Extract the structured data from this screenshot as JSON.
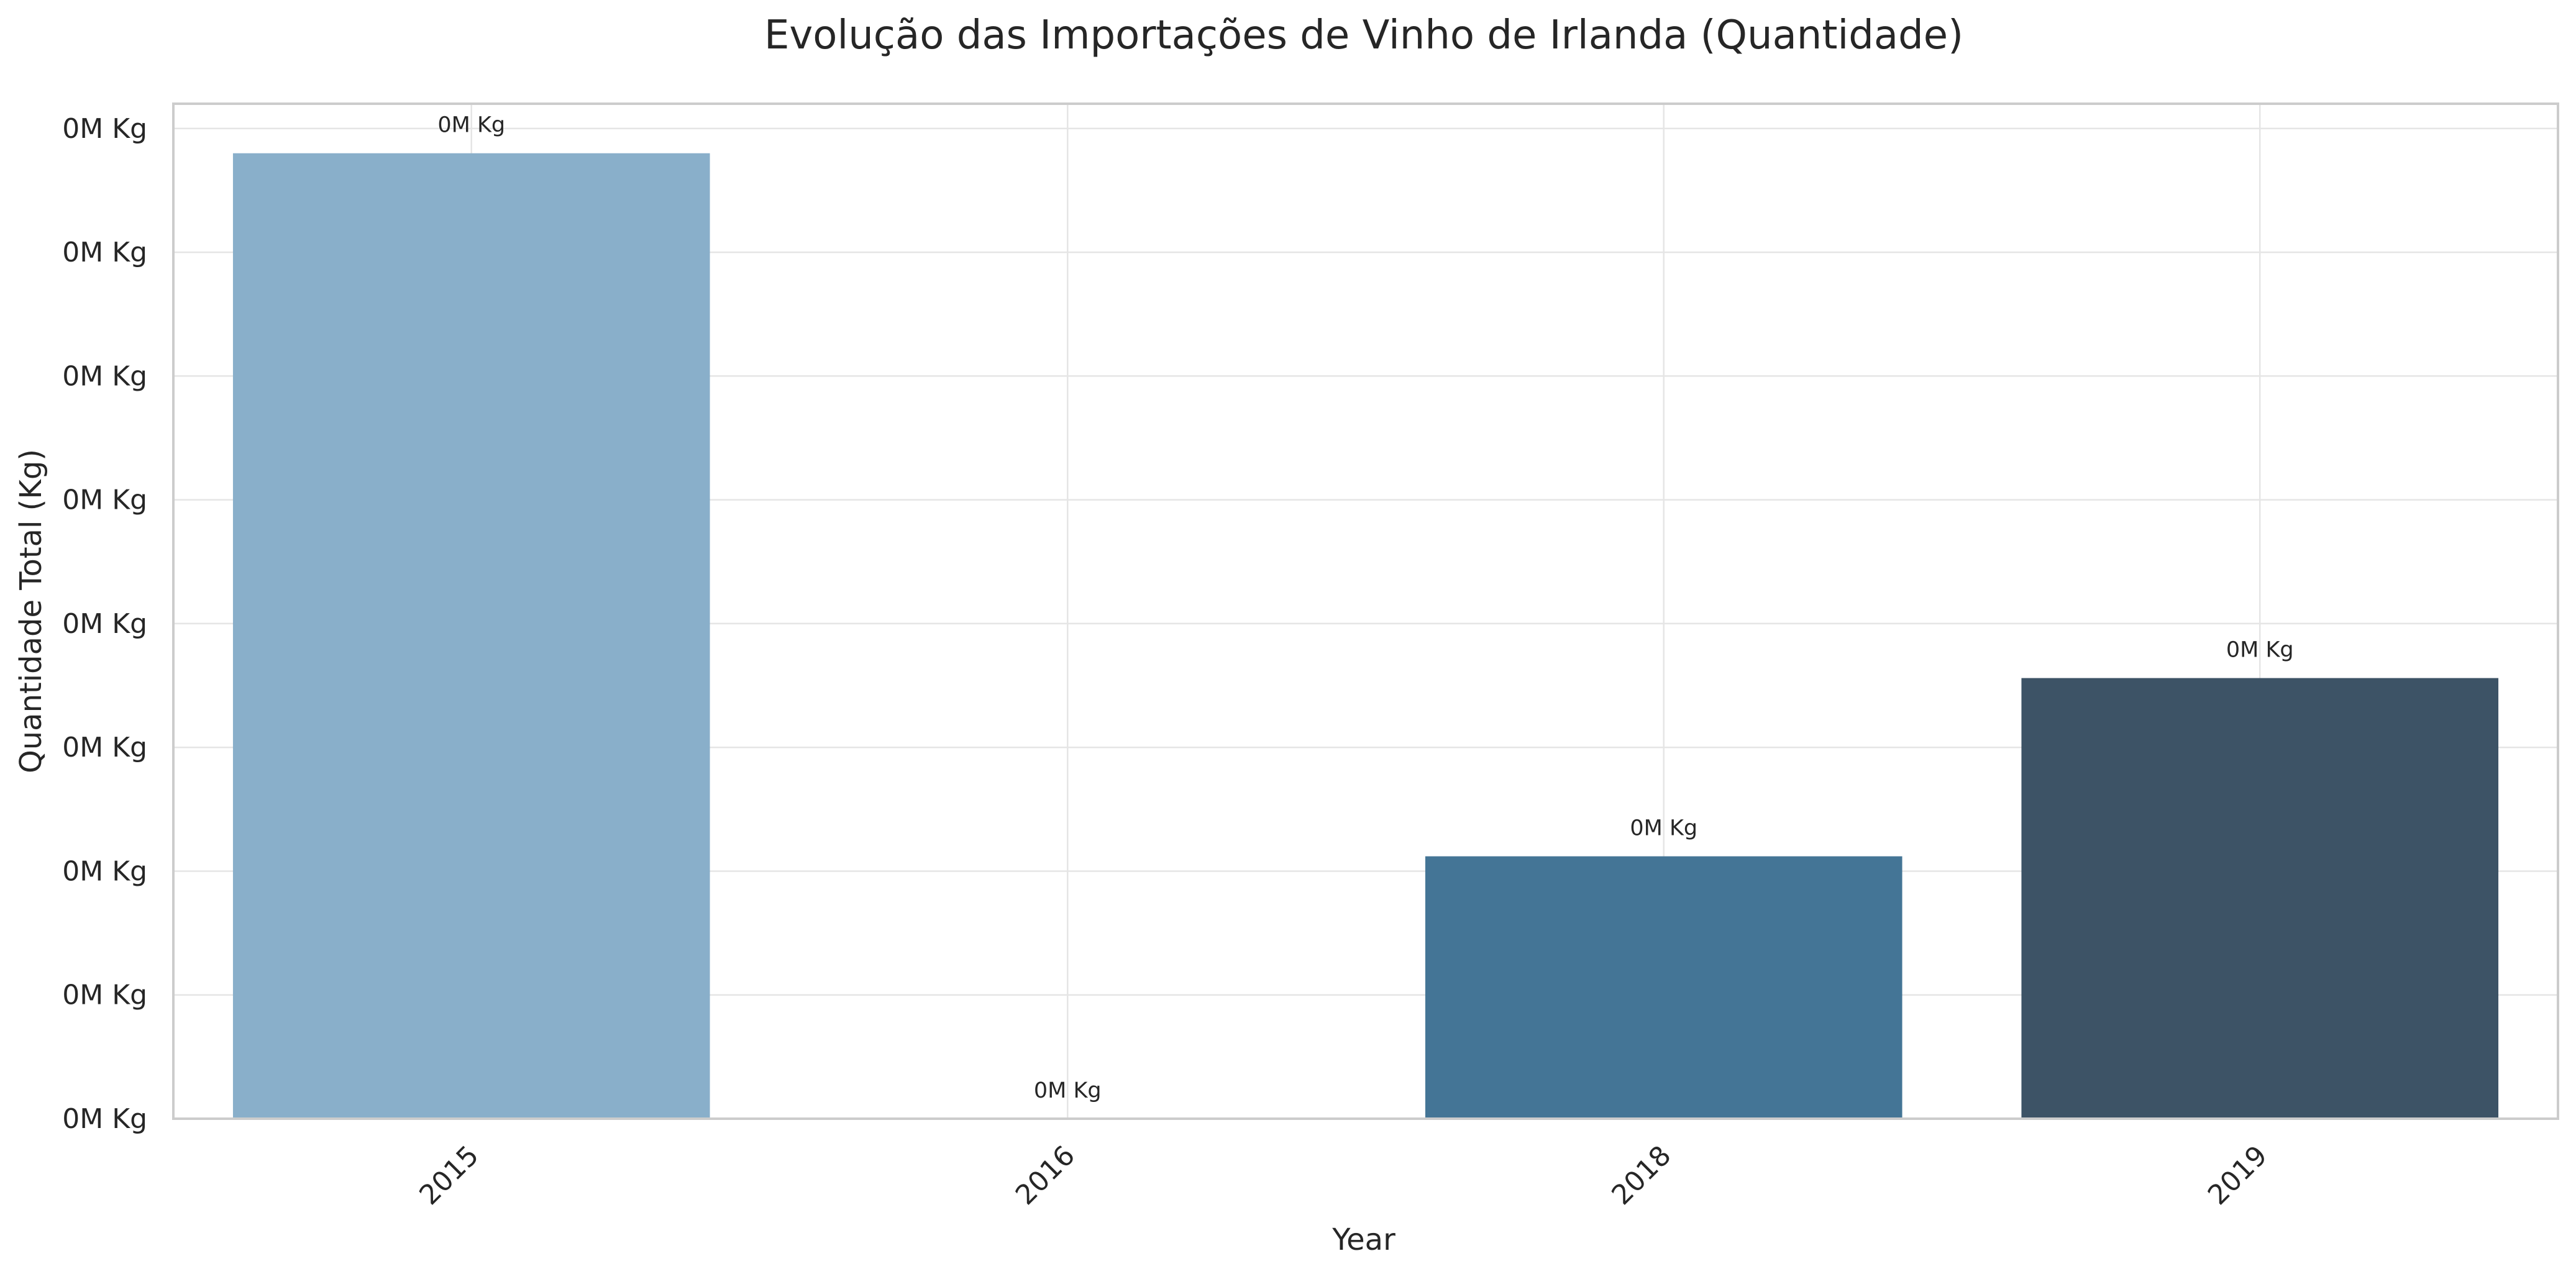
{
  "chart_data": {
    "type": "bar",
    "title": "Evolução das Importações de Vinho de Irlanda (Quantidade)",
    "xlabel": "Year",
    "ylabel": "Quantidade Total (Kg)",
    "categories": [
      "2015",
      "2016",
      "2018",
      "2019"
    ],
    "values": [
      1950,
      0,
      530,
      890
    ],
    "data_labels": [
      "0M Kg",
      "0M Kg",
      "0M Kg",
      "0M Kg"
    ],
    "y_ticks": [
      0,
      250,
      500,
      750,
      1000,
      1250,
      1500,
      1750,
      2000
    ],
    "y_tick_labels": [
      "0M Kg",
      "0M Kg",
      "0M Kg",
      "0M Kg",
      "0M Kg",
      "0M Kg",
      "0M Kg",
      "0M Kg",
      "0M Kg"
    ],
    "ylim": [
      0,
      2050
    ],
    "bar_colors": [
      "#89afca",
      "#4e7fa4",
      "#447596",
      "#3d5366"
    ],
    "grid": true,
    "x_tick_rotation": 45
  }
}
